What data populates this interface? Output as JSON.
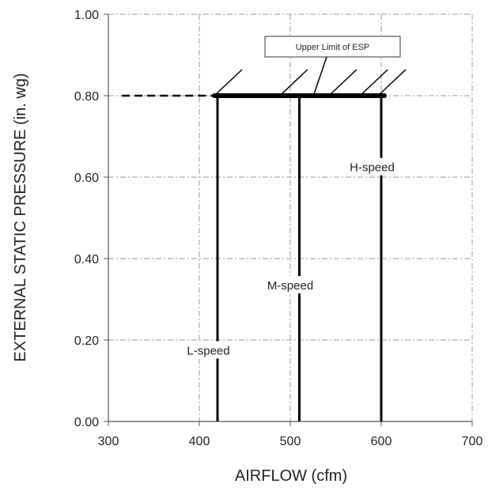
{
  "chart_data": {
    "type": "line",
    "xlabel": "AIRFLOW (cfm)",
    "ylabel": "EXTERNAL STATIC PRESSURE (in. wg)",
    "xlim": [
      300,
      700
    ],
    "ylim": [
      0.0,
      1.0
    ],
    "x_ticks": [
      "300",
      "400",
      "500",
      "600",
      "700"
    ],
    "y_ticks": [
      "0.00",
      "0.20",
      "0.40",
      "0.60",
      "0.80",
      "1.00"
    ],
    "grid": true,
    "series": [
      {
        "name": "L-speed",
        "x": [
          420,
          420
        ],
        "y": [
          0.0,
          0.8
        ]
      },
      {
        "name": "M-speed",
        "x": [
          510,
          510
        ],
        "y": [
          0.0,
          0.8
        ]
      },
      {
        "name": "H-speed",
        "x": [
          600,
          600
        ],
        "y": [
          0.0,
          0.8
        ]
      }
    ],
    "speed_label_positions": [
      {
        "text": "L-speed",
        "x": 410,
        "y": 0.17
      },
      {
        "text": "M-speed",
        "x": 500,
        "y": 0.33
      },
      {
        "text": "H-speed",
        "x": 590,
        "y": 0.62
      }
    ],
    "upper_limit": {
      "label": "Upper Limit of ESP",
      "value": 0.8,
      "x_range": [
        420,
        600
      ],
      "dashed_extension_from": 315
    }
  }
}
